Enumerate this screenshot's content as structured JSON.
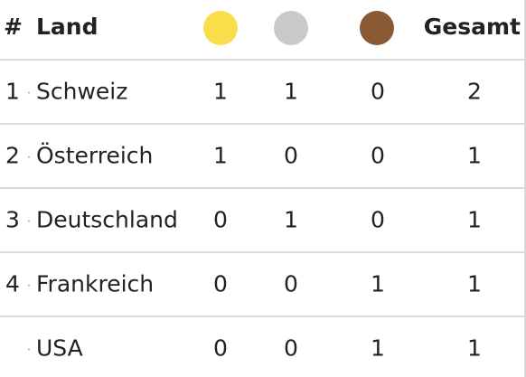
{
  "header": {
    "rank": "#",
    "country": "Land",
    "total": "Gesamt"
  },
  "rows": [
    {
      "rank": "1",
      "country": "Schweiz",
      "gold": 1,
      "silver": 1,
      "bronze": 0,
      "total": 2
    },
    {
      "rank": "2",
      "country": "Österreich",
      "gold": 1,
      "silver": 0,
      "bronze": 0,
      "total": 1
    },
    {
      "rank": "3",
      "country": "Deutschland",
      "gold": 0,
      "silver": 1,
      "bronze": 0,
      "total": 1
    },
    {
      "rank": "4",
      "country": "Frankreich",
      "gold": 0,
      "silver": 0,
      "bronze": 1,
      "total": 1
    },
    {
      "country": "USA",
      "gold": 0,
      "silver": 0,
      "bronze": 1,
      "total": 1
    }
  ]
}
